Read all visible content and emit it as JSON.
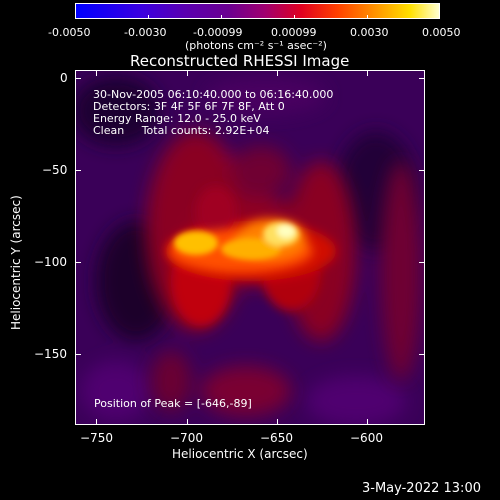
{
  "colorbar": {
    "tick_labels": [
      "-0.0050",
      "-0.0030",
      "-0.00099",
      "0.00099",
      "0.0030",
      "0.0050"
    ],
    "unit_label": "(photons cm⁻² s⁻¹ asec⁻²)"
  },
  "plot": {
    "title": "Reconstructed RHESSI Image",
    "info_lines": [
      "30-Nov-2005 06:10:40.000 to 06:16:40.000",
      "Detectors: 3F 4F 5F 6F 7F 8F, Att 0",
      "Energy Range: 12.0 - 25.0 keV",
      "Clean     Total counts: 2.92E+04"
    ],
    "peak_label": "Position of Peak = [-646,-89]",
    "xlabel": "Heliocentric X (arcsec)",
    "ylabel": "Heliocentric Y (arcsec)",
    "x_tick_labels": [
      "−750",
      "−700",
      "−650",
      "−600"
    ],
    "y_tick_labels": [
      "0",
      "−50",
      "−100",
      "−150"
    ],
    "x_range": [
      -758,
      -567
    ],
    "y_range": [
      -190,
      3
    ]
  },
  "footer": {
    "timestamp": "3-May-2022 13:00"
  }
}
